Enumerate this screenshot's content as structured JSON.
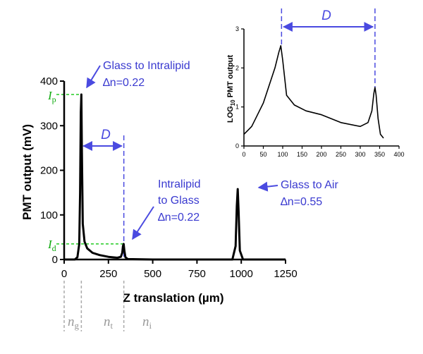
{
  "chart_data": [
    {
      "type": "line",
      "id": "main",
      "xlabel": "Z translation (µm)",
      "ylabel": "PMT output (mV)",
      "xlim": [
        0,
        1250
      ],
      "ylim": [
        0,
        400
      ],
      "xticks": [
        0,
        250,
        500,
        750,
        1000,
        1250
      ],
      "yticks": [
        0,
        100,
        200,
        300,
        400
      ],
      "series": [
        {
          "x": [
            0,
            60,
            75,
            85,
            90,
            94,
            97,
            100,
            105,
            115,
            130,
            160,
            200,
            250,
            300,
            320,
            328,
            332,
            336,
            340,
            346,
            360,
            500,
            800,
            950,
            968,
            975,
            980,
            985,
            992,
            1010,
            1250
          ],
          "y": [
            0,
            0,
            5,
            35,
            150,
            330,
            370,
            250,
            80,
            40,
            25,
            15,
            10,
            6,
            4,
            6,
            15,
            30,
            35,
            20,
            5,
            1,
            0,
            0,
            0,
            30,
            120,
            158,
            110,
            20,
            0,
            0
          ],
          "color": "#000000"
        }
      ],
      "levels": {
        "Ip": 370,
        "Id": 35
      },
      "markers": {
        "left_edge_x": 97,
        "right_edge_x": 337
      },
      "annotations": {
        "Ip": "I",
        "Ip_sub": "p",
        "Id": "I",
        "Id_sub": "d",
        "D": "D",
        "glass_intralipid_line1": "Glass to Intralipid",
        "glass_intralipid_line2": "∆n=0.22",
        "intralipid_glass_line1": "Intralipid",
        "intralipid_glass_line2": "to Glass",
        "intralipid_glass_line3": "∆n=0.22",
        "glass_air_line1": "Glass to Air",
        "glass_air_line2": "∆n=0.55"
      },
      "regions": [
        {
          "label": "n",
          "sub": "g"
        },
        {
          "label": "n",
          "sub": "t"
        },
        {
          "label": "n",
          "sub": "i"
        }
      ]
    },
    {
      "type": "line",
      "id": "inset",
      "ylabel_prefix": "LOG",
      "ylabel_sub": "10",
      "ylabel_suffix": " PMT output",
      "xlim": [
        0,
        400
      ],
      "ylim": [
        0,
        3
      ],
      "xticks": [
        0,
        50,
        100,
        150,
        200,
        250,
        300,
        350,
        400
      ],
      "yticks": [
        0,
        1,
        2,
        3
      ],
      "series": [
        {
          "x": [
            0,
            10,
            20,
            30,
            40,
            50,
            60,
            70,
            80,
            90,
            95,
            100,
            110,
            130,
            160,
            200,
            250,
            300,
            320,
            330,
            335,
            338,
            341,
            346,
            352,
            360
          ],
          "y": [
            0.3,
            0.4,
            0.5,
            0.7,
            0.9,
            1.1,
            1.4,
            1.7,
            2.0,
            2.4,
            2.57,
            2.2,
            1.3,
            1.05,
            0.9,
            0.8,
            0.6,
            0.5,
            0.6,
            0.9,
            1.35,
            1.5,
            1.3,
            0.7,
            0.3,
            0.2
          ],
          "color": "#000000"
        }
      ],
      "markers": {
        "left_edge_x": 97,
        "right_edge_x": 338
      },
      "annotations": {
        "D": "D"
      }
    }
  ]
}
